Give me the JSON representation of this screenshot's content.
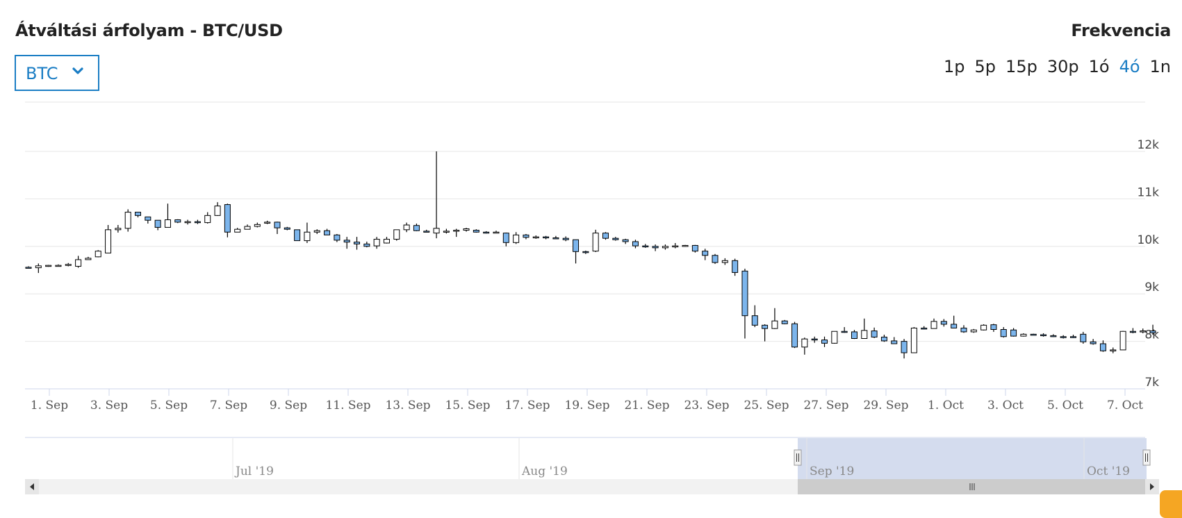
{
  "header": {
    "title": "Átváltási árfolyam - BTC/USD",
    "frequency_label": "Frekvencia"
  },
  "currency_select": {
    "value": "BTC"
  },
  "frequency_options": [
    {
      "label": "1p",
      "active": false
    },
    {
      "label": "5p",
      "active": false
    },
    {
      "label": "15p",
      "active": false
    },
    {
      "label": "30p",
      "active": false
    },
    {
      "label": "1ó",
      "active": false
    },
    {
      "label": "4ó",
      "active": true
    },
    {
      "label": "1n",
      "active": false
    }
  ],
  "colors": {
    "accent": "#1a7dc4",
    "down_candle": "#7cb5ec",
    "up_candle": "#ffffff",
    "navigator_mask": "#ccd6eb"
  },
  "chart_data": {
    "type": "candlestick",
    "title": "Átváltási árfolyam - BTC/USD",
    "ylim": [
      7000,
      12500
    ],
    "y_ticks": [
      {
        "label": "7k",
        "value": 7000
      },
      {
        "label": "8k",
        "value": 8000
      },
      {
        "label": "9k",
        "value": 9000
      },
      {
        "label": "10k",
        "value": 10000
      },
      {
        "label": "11k",
        "value": 11000
      },
      {
        "label": "12k",
        "value": 12000
      }
    ],
    "x_range_days": [
      1,
      38.6
    ],
    "x_ticks": [
      {
        "label": "1. Sep",
        "day": 1
      },
      {
        "label": "3. Sep",
        "day": 3
      },
      {
        "label": "5. Sep",
        "day": 5
      },
      {
        "label": "7. Sep",
        "day": 7
      },
      {
        "label": "9. Sep",
        "day": 9
      },
      {
        "label": "11. Sep",
        "day": 11
      },
      {
        "label": "13. Sep",
        "day": 13
      },
      {
        "label": "15. Sep",
        "day": 15
      },
      {
        "label": "17. Sep",
        "day": 17
      },
      {
        "label": "19. Sep",
        "day": 19
      },
      {
        "label": "21. Sep",
        "day": 21
      },
      {
        "label": "23. Sep",
        "day": 23
      },
      {
        "label": "25. Sep",
        "day": 25
      },
      {
        "label": "27. Sep",
        "day": 27
      },
      {
        "label": "29. Sep",
        "day": 29
      },
      {
        "label": "1. Oct",
        "day": 31
      },
      {
        "label": "3. Oct",
        "day": 33
      },
      {
        "label": "5. Oct",
        "day": 35
      },
      {
        "label": "7. Oct",
        "day": 37
      }
    ],
    "candle_interval_days": 0.333,
    "candles": [
      [
        9560,
        9580,
        9540,
        9550
      ],
      [
        9550,
        9640,
        9440,
        9590
      ],
      [
        9590,
        9610,
        9570,
        9600
      ],
      [
        9600,
        9620,
        9580,
        9600
      ],
      [
        9600,
        9650,
        9580,
        9620
      ],
      [
        9580,
        9800,
        9550,
        9720
      ],
      [
        9720,
        9780,
        9720,
        9750
      ],
      [
        9780,
        9920,
        9770,
        9900
      ],
      [
        9860,
        10450,
        9860,
        10350
      ],
      [
        10350,
        10450,
        10290,
        10380
      ],
      [
        10380,
        10780,
        10310,
        10720
      ],
      [
        10720,
        10700,
        10610,
        10650
      ],
      [
        10620,
        10620,
        10480,
        10550
      ],
      [
        10550,
        10550,
        10340,
        10400
      ],
      [
        10400,
        10900,
        10400,
        10560
      ],
      [
        10560,
        10570,
        10490,
        10510
      ],
      [
        10510,
        10560,
        10460,
        10520
      ],
      [
        10520,
        10560,
        10470,
        10510
      ],
      [
        10500,
        10720,
        10480,
        10650
      ],
      [
        10650,
        10930,
        10640,
        10850
      ],
      [
        10880,
        10900,
        10190,
        10300
      ],
      [
        10300,
        10390,
        10300,
        10360
      ],
      [
        10360,
        10460,
        10360,
        10420
      ],
      [
        10420,
        10500,
        10400,
        10460
      ],
      [
        10500,
        10540,
        10470,
        10510
      ],
      [
        10510,
        10520,
        10260,
        10390
      ],
      [
        10390,
        10410,
        10340,
        10360
      ],
      [
        10350,
        10350,
        10140,
        10120
      ],
      [
        10120,
        10500,
        10070,
        10300
      ],
      [
        10300,
        10360,
        10260,
        10330
      ],
      [
        10330,
        10370,
        10250,
        10240
      ],
      [
        10240,
        10260,
        10090,
        10130
      ],
      [
        10130,
        10200,
        9950,
        10090
      ],
      [
        10090,
        10200,
        9930,
        10050
      ],
      [
        10050,
        10100,
        9980,
        10000
      ],
      [
        10010,
        10200,
        9950,
        10150
      ],
      [
        10070,
        10200,
        10060,
        10150
      ],
      [
        10150,
        10350,
        10120,
        10350
      ],
      [
        10350,
        10500,
        10300,
        10450
      ],
      [
        10440,
        10480,
        10320,
        10330
      ],
      [
        10320,
        10350,
        10300,
        10310
      ],
      [
        10280,
        12000,
        10170,
        10380
      ],
      [
        10320,
        10370,
        10270,
        10320
      ],
      [
        10330,
        10370,
        10200,
        10340
      ],
      [
        10340,
        10390,
        10310,
        10370
      ],
      [
        10340,
        10360,
        10290,
        10300
      ],
      [
        10300,
        10320,
        10270,
        10290
      ],
      [
        10290,
        10330,
        10280,
        10300
      ],
      [
        10280,
        10290,
        10000,
        10080
      ],
      [
        10080,
        10300,
        10050,
        10240
      ],
      [
        10240,
        10260,
        10150,
        10190
      ],
      [
        10190,
        10230,
        10160,
        10200
      ],
      [
        10200,
        10220,
        10150,
        10180
      ],
      [
        10180,
        10220,
        10160,
        10170
      ],
      [
        10170,
        10210,
        10110,
        10140
      ],
      [
        10140,
        10140,
        9640,
        9890
      ],
      [
        9890,
        9910,
        9840,
        9880
      ],
      [
        9900,
        10350,
        9880,
        10280
      ],
      [
        10280,
        10300,
        10140,
        10170
      ],
      [
        10170,
        10200,
        10120,
        10140
      ],
      [
        10140,
        10160,
        10050,
        10100
      ],
      [
        10100,
        10140,
        9960,
        10010
      ],
      [
        10010,
        10050,
        9970,
        10000
      ],
      [
        10000,
        10040,
        9900,
        9970
      ],
      [
        9970,
        10040,
        9930,
        10000
      ],
      [
        10000,
        10070,
        9960,
        10010
      ],
      [
        10010,
        10030,
        9990,
        10020
      ],
      [
        10020,
        10030,
        9870,
        9900
      ],
      [
        9900,
        9950,
        9710,
        9810
      ],
      [
        9810,
        9840,
        9630,
        9660
      ],
      [
        9660,
        9750,
        9610,
        9700
      ],
      [
        9700,
        9740,
        9380,
        9450
      ],
      [
        9480,
        9530,
        8060,
        8540
      ],
      [
        8540,
        8760,
        8300,
        8340
      ],
      [
        8340,
        8360,
        8000,
        8270
      ],
      [
        8270,
        8700,
        8260,
        8430
      ],
      [
        8430,
        8450,
        8360,
        8370
      ],
      [
        8370,
        8410,
        7860,
        7880
      ],
      [
        7880,
        8080,
        7720,
        8050
      ],
      [
        8050,
        8100,
        7970,
        8030
      ],
      [
        8030,
        8100,
        7880,
        7960
      ],
      [
        7960,
        8200,
        7950,
        8210
      ],
      [
        8210,
        8300,
        8180,
        8200
      ],
      [
        8200,
        8240,
        8050,
        8060
      ],
      [
        8060,
        8480,
        8060,
        8230
      ],
      [
        8220,
        8290,
        8070,
        8090
      ],
      [
        8090,
        8140,
        7990,
        8010
      ],
      [
        8010,
        8090,
        7950,
        7950
      ],
      [
        8000,
        8050,
        7640,
        7760
      ],
      [
        7760,
        8300,
        7760,
        8280
      ],
      [
        8280,
        8320,
        8250,
        8270
      ],
      [
        8270,
        8480,
        8270,
        8420
      ],
      [
        8420,
        8470,
        8310,
        8360
      ],
      [
        8360,
        8540,
        8310,
        8280
      ],
      [
        8280,
        8340,
        8180,
        8200
      ],
      [
        8200,
        8260,
        8180,
        8240
      ],
      [
        8240,
        8360,
        8230,
        8340
      ],
      [
        8350,
        8370,
        8200,
        8250
      ],
      [
        8250,
        8300,
        8080,
        8100
      ],
      [
        8240,
        8280,
        8100,
        8110
      ],
      [
        8110,
        8170,
        8100,
        8150
      ],
      [
        8150,
        8160,
        8130,
        8140
      ],
      [
        8140,
        8170,
        8100,
        8120
      ],
      [
        8120,
        8150,
        8090,
        8100
      ],
      [
        8100,
        8130,
        8060,
        8090
      ],
      [
        8100,
        8140,
        8070,
        8090
      ],
      [
        8150,
        8200,
        7950,
        7990
      ],
      [
        7990,
        8050,
        7930,
        7950
      ],
      [
        7950,
        8020,
        7780,
        7800
      ],
      [
        7800,
        7870,
        7750,
        7820
      ],
      [
        7820,
        8220,
        7820,
        8210
      ],
      [
        8210,
        8280,
        8170,
        8200
      ],
      [
        8210,
        8270,
        8170,
        8220
      ],
      [
        8220,
        8350,
        8140,
        8180
      ]
    ],
    "navigator": {
      "labels": [
        {
          "label": "Jul '19"
        },
        {
          "label": "Aug '19"
        },
        {
          "label": "Sep '19"
        },
        {
          "label": "Oct '19"
        }
      ]
    }
  }
}
